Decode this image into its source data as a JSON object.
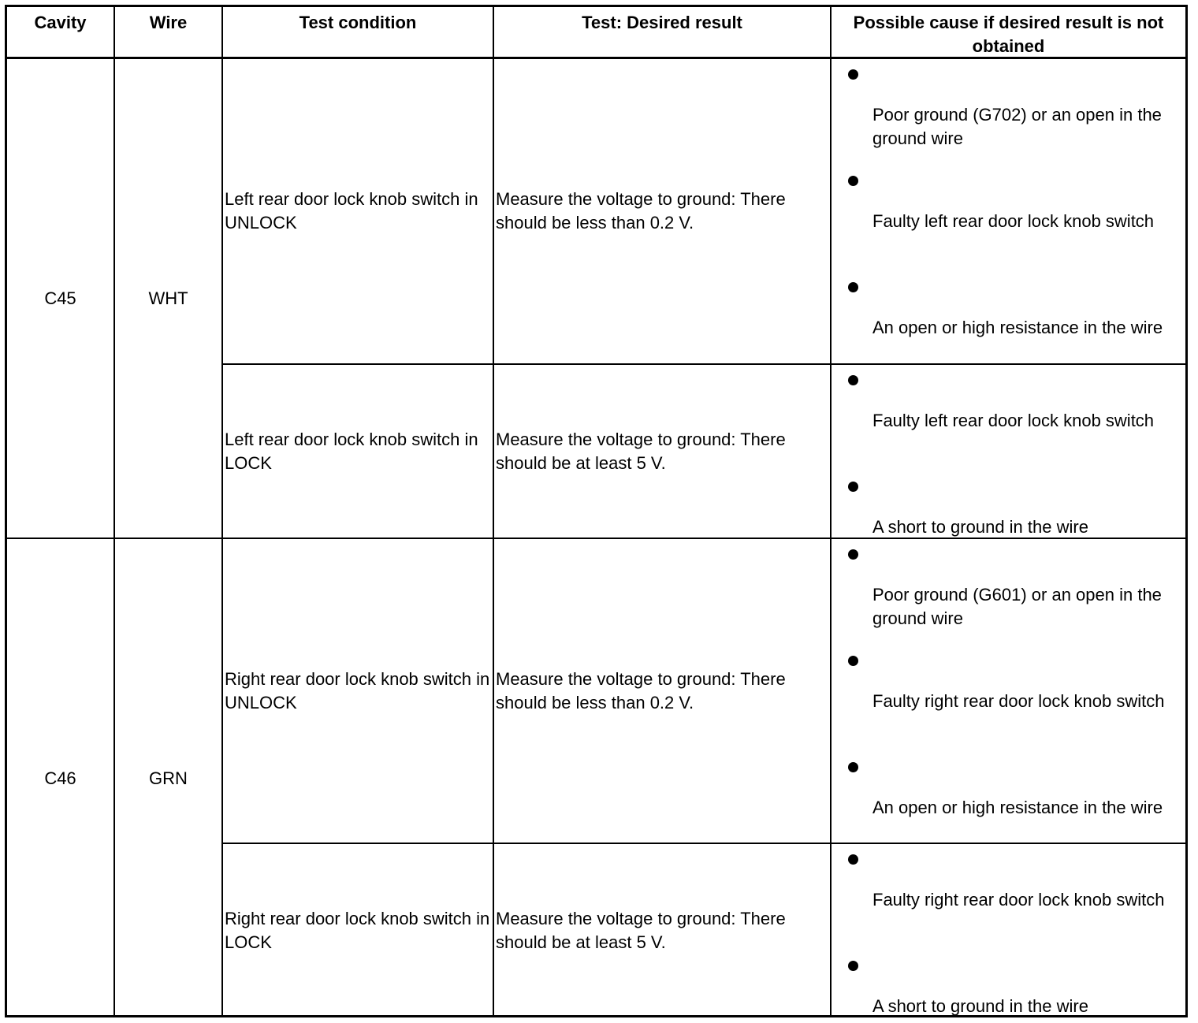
{
  "headers": [
    "Cavity",
    "Wire",
    "Test condition",
    "Test: Desired result",
    "Possible cause if desired result is not obtained"
  ],
  "groups": [
    {
      "cavity": "C45",
      "wire": "WHT",
      "tests": [
        {
          "condition": "Left rear door lock knob switch in UNLOCK",
          "result": "Measure the voltage to ground: There should be less than 0.2 V.",
          "causes": [
            "Poor ground (G702) or an open in the ground wire",
            "Faulty left rear door lock knob switch",
            "An open or high resistance in the wire"
          ]
        },
        {
          "condition": "Left rear door lock knob switch in LOCK",
          "result": "Measure the voltage to ground: There should be at least 5 V.",
          "causes": [
            "Faulty left rear door lock knob switch",
            "A short to ground in the wire"
          ]
        }
      ]
    },
    {
      "cavity": "C46",
      "wire": "GRN",
      "tests": [
        {
          "condition": "Right rear door lock knob switch in UNLOCK",
          "result": "Measure the voltage to ground: There should be less than 0.2 V.",
          "causes": [
            "Poor ground (G601) or an open in the ground wire",
            "Faulty right rear door lock knob switch",
            "An open or high resistance in the wire"
          ]
        },
        {
          "condition": "Right rear door lock knob switch in LOCK",
          "result": "Measure the voltage to ground: There should be at least 5 V.",
          "causes": [
            "Faulty right rear door lock knob switch",
            "A short to ground in the wire"
          ]
        }
      ]
    }
  ]
}
